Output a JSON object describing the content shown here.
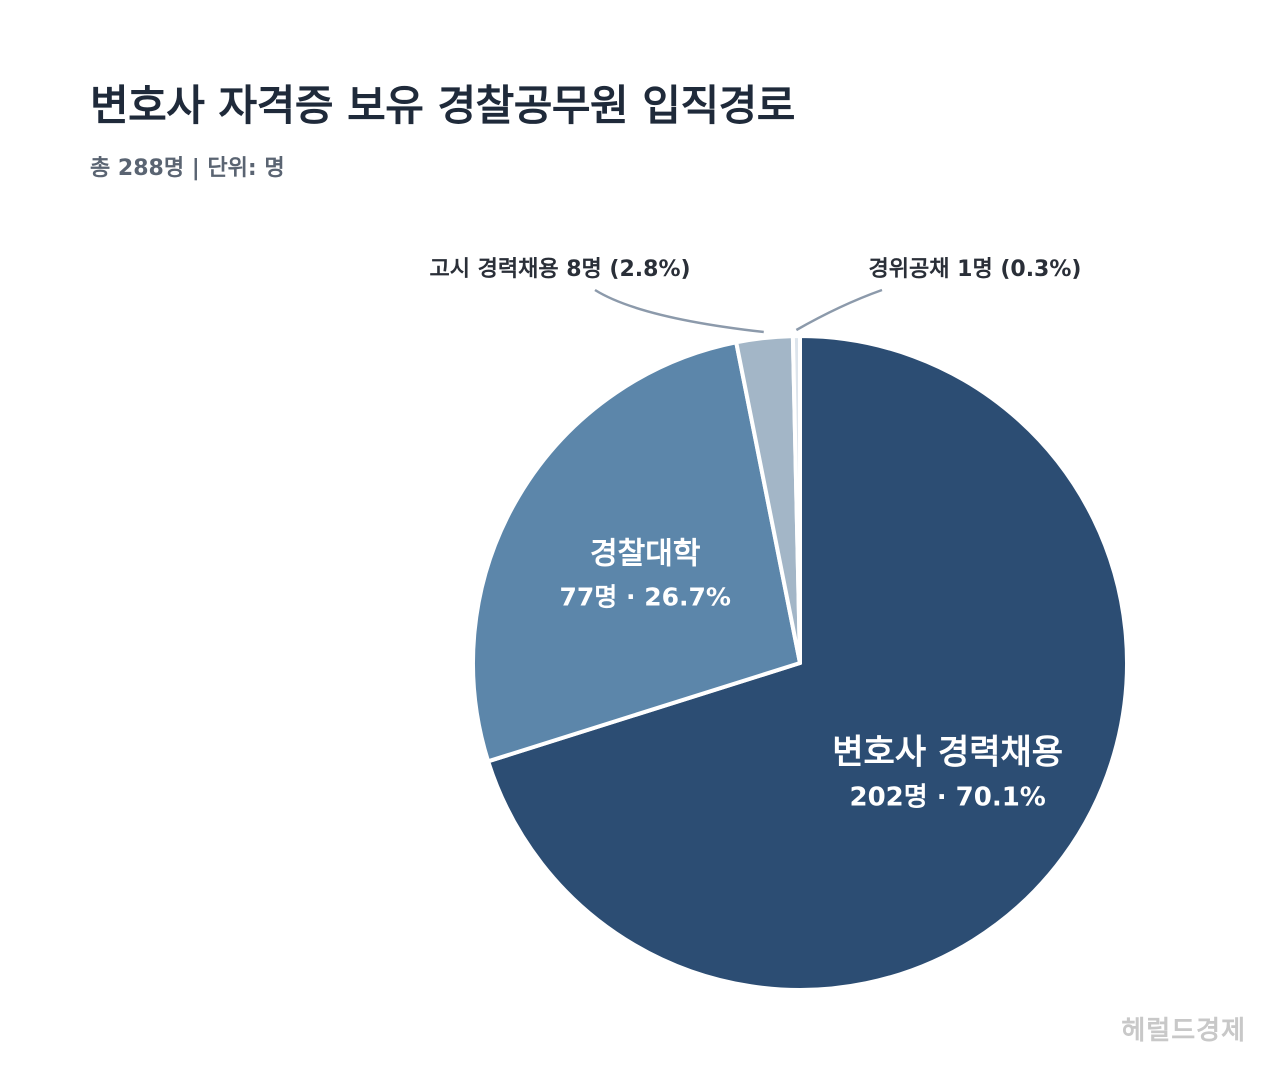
{
  "title": "변호사 자격증 보유 경찰공무원 입직경로",
  "subtitle": "총 288명  |  단위: 명",
  "watermark": "헤럴드경제",
  "chart_data": {
    "type": "pie",
    "title": "변호사 자격증 보유 경찰공무원 입직경로",
    "total": 288,
    "unit": "명",
    "slices": [
      {
        "label": "변호사 경력채용",
        "value": 202,
        "percent": 70.1,
        "value_text": "202명 · 70.1%",
        "color": "#2c4d73"
      },
      {
        "label": "경찰대학",
        "value": 77,
        "percent": 26.7,
        "value_text": "77명 · 26.7%",
        "color": "#5c86aa"
      },
      {
        "label": "고시 경력채용",
        "value": 8,
        "percent": 2.8,
        "value_text": "고시 경력채용  8명 (2.8%)",
        "color": "#a3b6c7"
      },
      {
        "label": "경위공채",
        "value": 1,
        "percent": 0.3,
        "value_text": "경위공채  1명 (0.3%)",
        "color": "#dce4ec"
      }
    ]
  }
}
